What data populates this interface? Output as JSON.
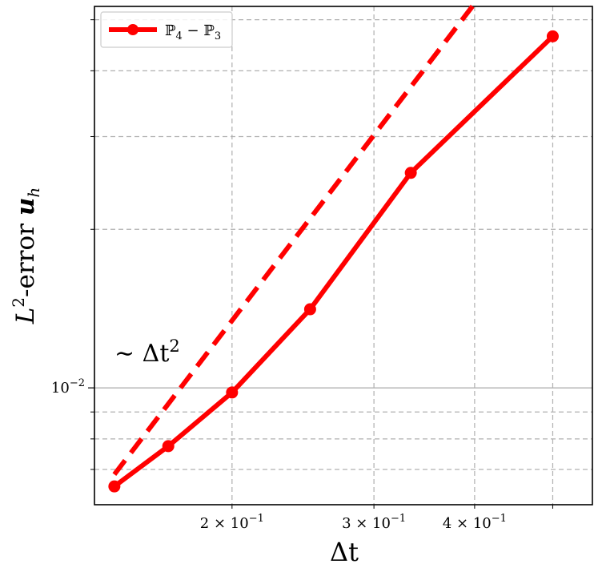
{
  "chart_data": {
    "type": "line",
    "xlabel": "Δt",
    "ylabel": "L²-error u_h",
    "ylabel_parts": {
      "base": "L",
      "sup": "2",
      "rest": "-error ",
      "bold": "u",
      "sub": "h"
    },
    "x_scale": "log",
    "y_scale": "log",
    "xlim": [
      0.135,
      0.56
    ],
    "ylim": [
      0.006,
      0.053
    ],
    "grid": true,
    "legend_position": "top-left",
    "x_ticks": [
      {
        "value": 0.2,
        "label_base": "2 × 10",
        "label_exp": "−1"
      },
      {
        "value": 0.3,
        "label_base": "3 × 10",
        "label_exp": "−1"
      },
      {
        "value": 0.4,
        "label_base": "4 × 10",
        "label_exp": "−1"
      }
    ],
    "y_ticks": [
      {
        "value": 0.01,
        "label_base": "10",
        "label_exp": "−2"
      }
    ],
    "series": [
      {
        "name": "ℙ4 − ℙ3",
        "legend_parts": [
          "ℙ",
          "4",
          " − ℙ",
          "3"
        ],
        "color": "#ff0000",
        "style": "solid",
        "marker": "circle",
        "x": [
          0.1429,
          0.1667,
          0.2,
          0.25,
          0.3333,
          0.5
        ],
        "y": [
          0.0065,
          0.00775,
          0.0098,
          0.0141,
          0.0256,
          0.0465
        ]
      }
    ],
    "reference_line": {
      "label": "∼ Δt²",
      "label_parts": {
        "text": "∼ Δt",
        "sup": "2"
      },
      "color": "#ff0000",
      "style": "dashed",
      "x": [
        0.1429,
        0.5
      ],
      "y": [
        0.00685,
        0.0839
      ]
    }
  }
}
